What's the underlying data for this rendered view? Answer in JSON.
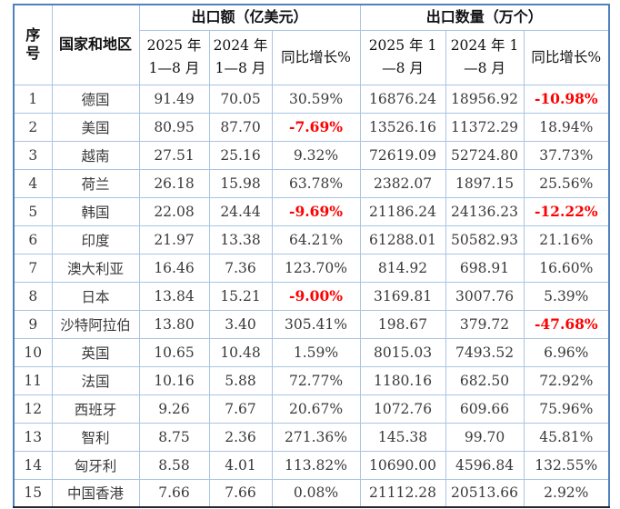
{
  "chart_data": {
    "type": "table",
    "header": {
      "seq_lines": "序\n号",
      "country": "国家和地区",
      "group_value": "出口额（亿美元）",
      "group_qty": "出口数量（万个）",
      "value_2025": "2025 年\n1—8 月",
      "value_2024": "2024 年\n1—8 月",
      "value_growth": "同比增长%",
      "qty_2025": "2025 年 1\n—8 月",
      "qty_2024": "2024 年 1\n—8 月",
      "qty_growth": "同比增长%"
    },
    "rows": [
      {
        "seq": "1",
        "country": "德国",
        "value_2025": "91.49",
        "value_2024": "70.05",
        "value_growth": "30.59%",
        "qty_2025": "16876.24",
        "qty_2024": "18956.92",
        "qty_growth": "-10.98%"
      },
      {
        "seq": "2",
        "country": "美国",
        "value_2025": "80.95",
        "value_2024": "87.70",
        "value_growth": "-7.69%",
        "qty_2025": "13526.16",
        "qty_2024": "11372.29",
        "qty_growth": "18.94%"
      },
      {
        "seq": "3",
        "country": "越南",
        "value_2025": "27.51",
        "value_2024": "25.16",
        "value_growth": "9.32%",
        "qty_2025": "72619.09",
        "qty_2024": "52724.80",
        "qty_growth": "37.73%"
      },
      {
        "seq": "4",
        "country": "荷兰",
        "value_2025": "26.18",
        "value_2024": "15.98",
        "value_growth": "63.78%",
        "qty_2025": "2382.07",
        "qty_2024": "1897.15",
        "qty_growth": "25.56%"
      },
      {
        "seq": "5",
        "country": "韩国",
        "value_2025": "22.08",
        "value_2024": "24.44",
        "value_growth": "-9.69%",
        "qty_2025": "21186.24",
        "qty_2024": "24136.23",
        "qty_growth": "-12.22%"
      },
      {
        "seq": "6",
        "country": "印度",
        "value_2025": "21.97",
        "value_2024": "13.38",
        "value_growth": "64.21%",
        "qty_2025": "61288.01",
        "qty_2024": "50582.93",
        "qty_growth": "21.16%"
      },
      {
        "seq": "7",
        "country": "澳大利亚",
        "value_2025": "16.46",
        "value_2024": "7.36",
        "value_growth": "123.70%",
        "qty_2025": "814.92",
        "qty_2024": "698.91",
        "qty_growth": "16.60%"
      },
      {
        "seq": "8",
        "country": "日本",
        "value_2025": "13.84",
        "value_2024": "15.21",
        "value_growth": "-9.00%",
        "qty_2025": "3169.81",
        "qty_2024": "3007.76",
        "qty_growth": "5.39%"
      },
      {
        "seq": "9",
        "country": "沙特阿拉伯",
        "value_2025": "13.80",
        "value_2024": "3.40",
        "value_growth": "305.41%",
        "qty_2025": "198.67",
        "qty_2024": "379.72",
        "qty_growth": "-47.68%"
      },
      {
        "seq": "10",
        "country": "英国",
        "value_2025": "10.65",
        "value_2024": "10.48",
        "value_growth": "1.59%",
        "qty_2025": "8015.03",
        "qty_2024": "7493.52",
        "qty_growth": "6.96%"
      },
      {
        "seq": "11",
        "country": "法国",
        "value_2025": "10.16",
        "value_2024": "5.88",
        "value_growth": "72.77%",
        "qty_2025": "1180.16",
        "qty_2024": "682.50",
        "qty_growth": "72.92%"
      },
      {
        "seq": "12",
        "country": "西班牙",
        "value_2025": "9.26",
        "value_2024": "7.67",
        "value_growth": "20.67%",
        "qty_2025": "1072.76",
        "qty_2024": "609.66",
        "qty_growth": "75.96%"
      },
      {
        "seq": "13",
        "country": "智利",
        "value_2025": "8.75",
        "value_2024": "2.36",
        "value_growth": "271.36%",
        "qty_2025": "145.38",
        "qty_2024": "99.70",
        "qty_growth": "45.81%"
      },
      {
        "seq": "14",
        "country": "匈牙利",
        "value_2025": "8.58",
        "value_2024": "4.01",
        "value_growth": "113.82%",
        "qty_2025": "10690.00",
        "qty_2024": "4596.84",
        "qty_growth": "132.55%"
      },
      {
        "seq": "15",
        "country": "中国香港",
        "value_2025": "7.66",
        "value_2024": "7.66",
        "value_growth": "0.08%",
        "qty_2025": "21112.28",
        "qty_2024": "20513.66",
        "qty_growth": "2.92%"
      }
    ]
  },
  "colors": {
    "grid": "#a9c4e4",
    "outer": "#4f81bd",
    "bottom-border": "#24242c",
    "negative": "#fe0000",
    "text": "#3a3a3a",
    "header-text": "#111111"
  }
}
